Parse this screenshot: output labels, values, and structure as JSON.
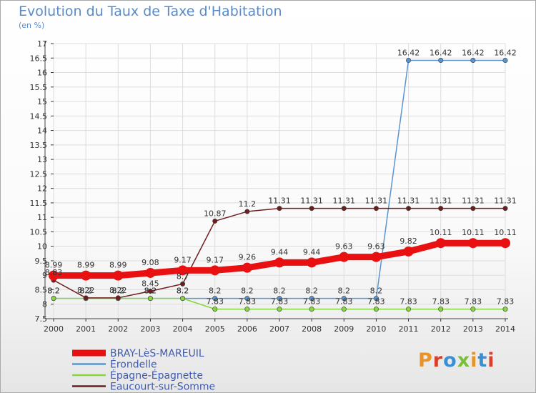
{
  "title": "Evolution du Taux de Taxe d'Habitation",
  "subtitle": "(en %)",
  "logo": {
    "text": "Proxiti",
    "colors": [
      "#e8922a",
      "#d9402c",
      "#3a8fd4",
      "#7abf3a",
      "#e8922a",
      "#3a8fd4",
      "#d9402c"
    ]
  },
  "chart_data": {
    "type": "line",
    "title": "Evolution du Taux de Taxe d'Habitation",
    "ylabel": "(en %)",
    "xlabel": "",
    "x": [
      "2000",
      "2001",
      "2002",
      "2003",
      "2004",
      "2005",
      "2006",
      "2007",
      "2008",
      "2009",
      "2010",
      "2011",
      "2012",
      "2013",
      "2014"
    ],
    "ylim": [
      7.5,
      17
    ],
    "yticks": [
      "7.5",
      "8",
      "8.5",
      "9",
      "9.5",
      "10",
      "10.5",
      "11",
      "11.5",
      "12",
      "12.5",
      "13",
      "13.5",
      "14",
      "14.5",
      "15",
      "15.5",
      "16",
      "16.5",
      "17"
    ],
    "grid": true,
    "legend_position": "bottom-left",
    "series": [
      {
        "name": "BRAY-LèS-MAREUIL",
        "color": "#e81010",
        "values": [
          8.99,
          8.99,
          8.99,
          9.08,
          9.17,
          9.17,
          9.26,
          9.44,
          9.44,
          9.63,
          9.63,
          9.82,
          10.11,
          10.11,
          10.11
        ],
        "labels": [
          "8.99",
          "8.99",
          "8.99",
          "9.08",
          "9.17",
          "9.17",
          "9.26",
          "9.44",
          "9.44",
          "9.63",
          "9.63",
          "9.82",
          "10.11",
          "10.11",
          "10.11"
        ]
      },
      {
        "name": "Érondelle",
        "color": "#5b95cf",
        "values": [
          8.2,
          8.2,
          8.2,
          8.2,
          8.2,
          8.2,
          8.2,
          8.2,
          8.2,
          8.2,
          8.2,
          16.42,
          16.42,
          16.42,
          16.42
        ],
        "labels": [
          "8.2",
          "8.2",
          "8.2",
          "8.2",
          "8.2",
          "8.2",
          "8.2",
          "8.2",
          "8.2",
          "8.2",
          "8.2",
          "16.42",
          "16.42",
          "16.42",
          "16.42"
        ]
      },
      {
        "name": "Épagne-Épagnette",
        "color": "#86d63e",
        "values": [
          8.2,
          8.2,
          8.2,
          8.2,
          8.2,
          7.83,
          7.83,
          7.83,
          7.83,
          7.83,
          7.83,
          7.83,
          7.83,
          7.83,
          7.83
        ],
        "labels": [
          "8.2",
          "8.2",
          "8.2",
          "8.2",
          "8.2",
          "7.83",
          "7.83",
          "7.83",
          "7.83",
          "7.83",
          "7.83",
          "7.83",
          "7.83",
          "7.83",
          "7.83"
        ]
      },
      {
        "name": "Eaucourt-sur-Somme",
        "color": "#6d1d1d",
        "values": [
          8.83,
          8.22,
          8.22,
          8.45,
          8.7,
          10.87,
          11.2,
          11.31,
          11.31,
          11.31,
          11.31,
          11.31,
          11.31,
          11.31,
          11.31
        ],
        "labels": [
          "8.83",
          "8.22",
          "8.22",
          "8.45",
          "8.7",
          "10.87",
          "11.2",
          "11.31",
          "11.31",
          "11.31",
          "11.31",
          "11.31",
          "11.31",
          "11.31",
          "11.31"
        ]
      }
    ]
  }
}
